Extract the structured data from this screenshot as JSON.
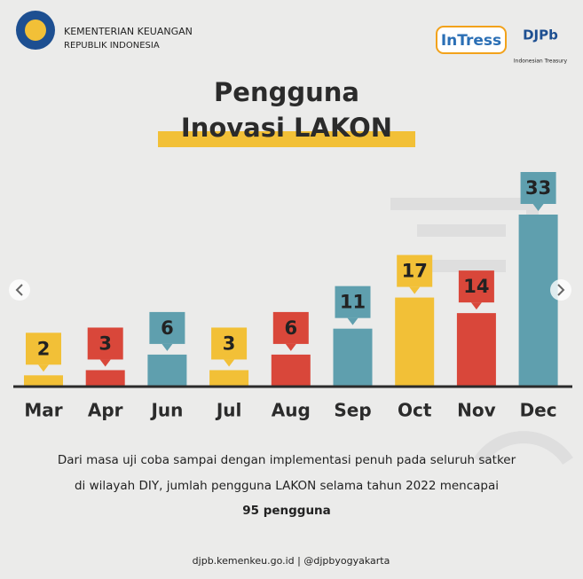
{
  "header": {
    "org_line1": "KEMENTERIAN KEUANGAN",
    "org_line2": "REPUBLIK INDONESIA",
    "logo1": "InTress",
    "logo2": "DJPb",
    "logo2_sub": "Indonesian Treasury"
  },
  "chart_data": {
    "type": "bar",
    "title": [
      "Pengguna",
      "Inovasi LAKON"
    ],
    "categories": [
      "Mar",
      "Apr",
      "Jun",
      "Jul",
      "Aug",
      "Sep",
      "Oct",
      "Nov",
      "Dec"
    ],
    "values": [
      2,
      3,
      6,
      3,
      6,
      11,
      17,
      14,
      33
    ],
    "colors": [
      "#f2c037",
      "#d9473a",
      "#5f9fae",
      "#f2c037",
      "#d9473a",
      "#5f9fae",
      "#f2c037",
      "#d9473a",
      "#5f9fae"
    ]
  },
  "description": [
    "Dari masa uji coba sampai dengan implementasi penuh pada seluruh satker",
    "di wilayah DIY, jumlah pengguna LAKON selama tahun 2022 mencapai",
    "95 pengguna"
  ],
  "footer": "djpb.kemenkeu.go.id | @djpbyogyakarta"
}
